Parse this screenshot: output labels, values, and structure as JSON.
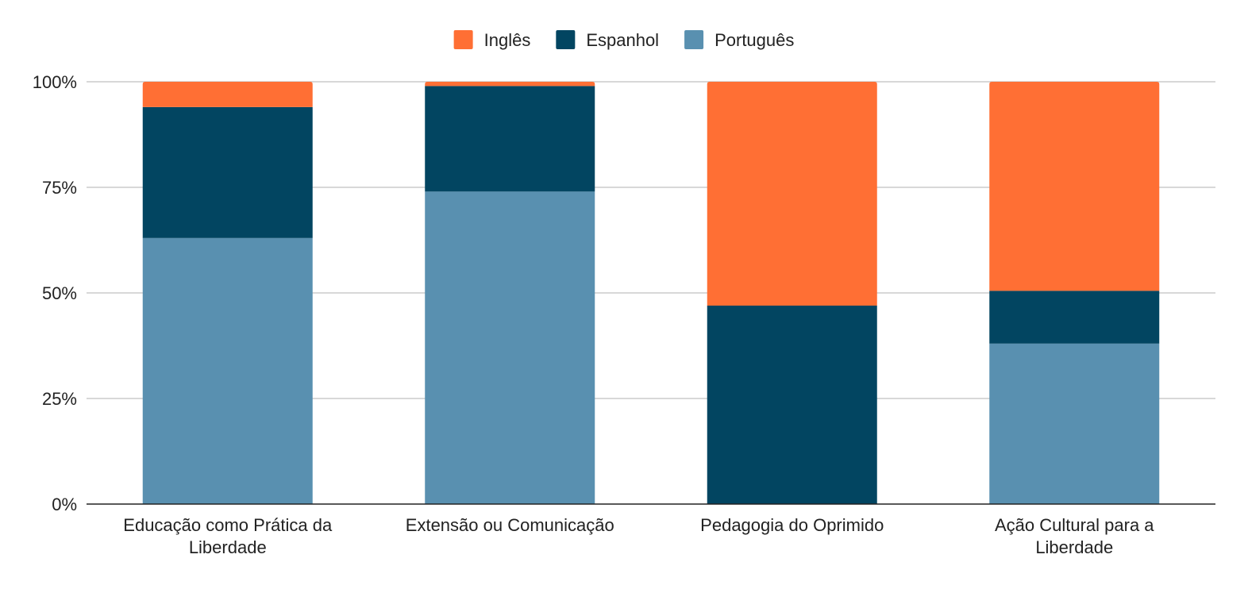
{
  "chart_data": {
    "type": "bar",
    "stacked": true,
    "percent": true,
    "categories": [
      [
        "Educação como Prática da",
        "Liberdade"
      ],
      [
        "Extensão ou Comunicação"
      ],
      [
        "Pedagogia do Oprimido"
      ],
      [
        "Ação Cultural para a",
        "Liberdade"
      ]
    ],
    "series": [
      {
        "name": "Português",
        "color": "#5990b0",
        "values": [
          63,
          74,
          0,
          38
        ]
      },
      {
        "name": "Espanhol",
        "color": "#024561",
        "values": [
          31,
          25,
          47,
          12.5
        ]
      },
      {
        "name": "Inglês",
        "color": "#ff6f34",
        "values": [
          6,
          1,
          53,
          49.5
        ]
      }
    ],
    "legend_order": [
      "Inglês",
      "Espanhol",
      "Português"
    ],
    "legend_position": "top",
    "y_ticks": [
      "0%",
      "25%",
      "50%",
      "75%",
      "100%"
    ],
    "ylim": [
      0,
      100
    ],
    "grid": true,
    "title": "",
    "xlabel": "",
    "ylabel": ""
  }
}
